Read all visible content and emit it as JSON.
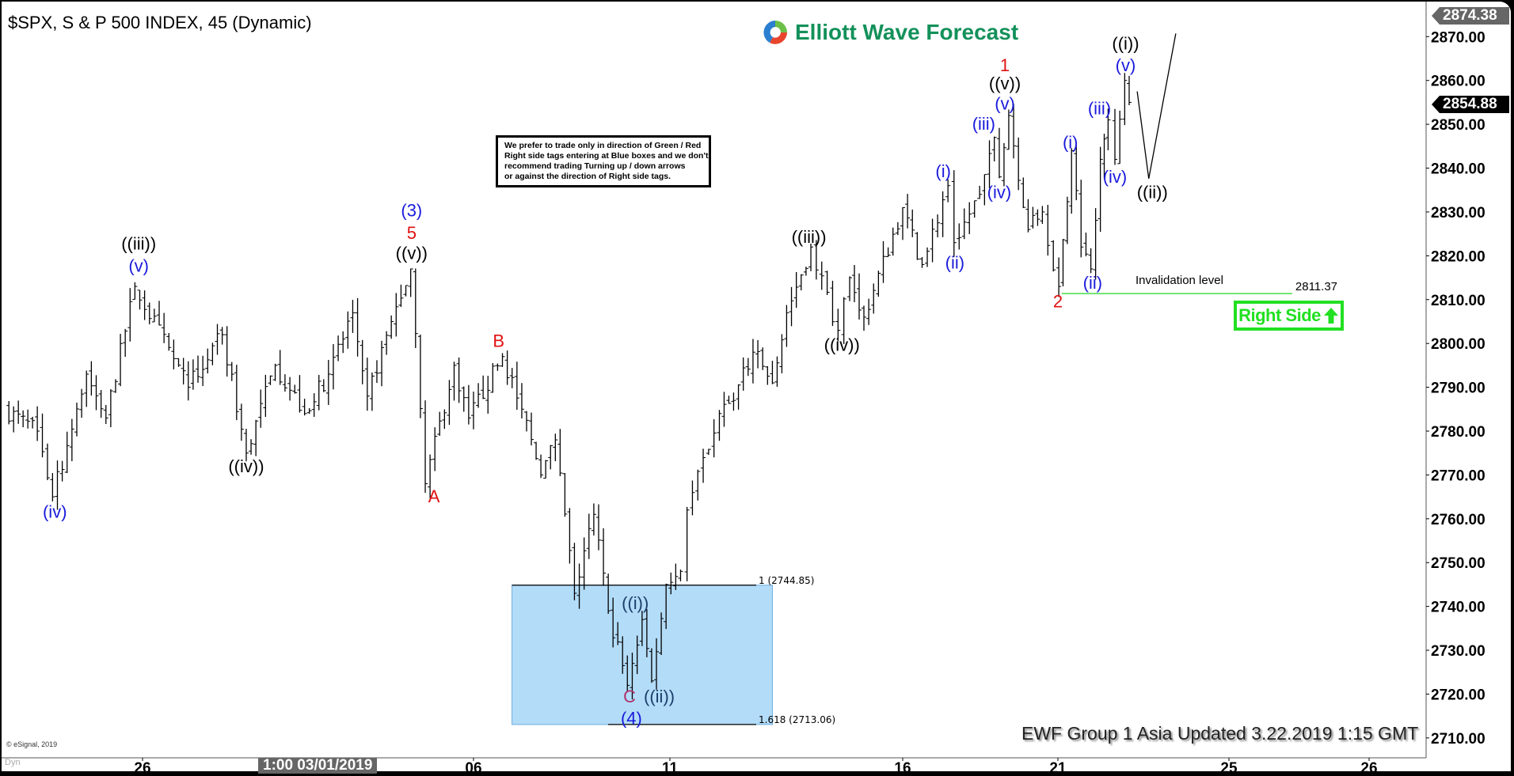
{
  "header": {
    "title": "$SPX, S & P 500 INDEX, 45 (Dynamic)",
    "logo_text": "Elliott Wave Forecast"
  },
  "note": {
    "lines": [
      "We prefer to trade only in direction of Green / Red",
      "Right side tags entering at Blue boxes and we don't",
      "recommend trading Turning up / down arrows",
      "or against the direction of Right side tags."
    ]
  },
  "right_side_tag": {
    "label": "Right Side",
    "icon": "arrow-up-icon",
    "color": "#22e022"
  },
  "update_text": "EWF Group 1 Asia Updated 3.22.2019 1:15 GMT",
  "copyright": "© eSignal, 2019",
  "dyn_label": "Dyn",
  "price_tags": {
    "high": "2874.38",
    "last": "2854.88"
  },
  "date_highlight": "1:00 03/01/2019",
  "chart_data": {
    "type": "ohlc",
    "title": "$SPX, S & P 500 INDEX, 45 (Dynamic)",
    "ylim": [
      2708,
      2876
    ],
    "y_ticks": [
      "2870.00",
      "2860.00",
      "2850.00",
      "2840.00",
      "2830.00",
      "2820.00",
      "2810.00",
      "2800.00",
      "2790.00",
      "2780.00",
      "2770.00",
      "2760.00",
      "2750.00",
      "2740.00",
      "2730.00",
      "2720.00",
      "2710.00"
    ],
    "x_ticks": [
      {
        "label": "26",
        "date": "2019-02-26T00:00"
      },
      {
        "label": "",
        "date": "2019-03-01T00:00"
      },
      {
        "label": "06",
        "date": "2019-03-06T00:00"
      },
      {
        "label": "11",
        "date": "2019-03-11T00:00"
      },
      {
        "label": "16",
        "date": "2019-03-16T00:00"
      },
      {
        "label": "21",
        "date": "2019-03-21T00:00"
      },
      {
        "label": "25",
        "date": "2019-03-25T00:00"
      },
      {
        "label": "26",
        "date": "2019-03-26T00:00"
      }
    ],
    "grid": false,
    "price_path": [
      [
        "2019-02-23T11:30",
        2785
      ],
      [
        "2019-02-24T02:00",
        2780
      ],
      [
        "2019-02-24T08:40",
        2765
      ],
      [
        "2019-02-24T23:30",
        2793
      ],
      [
        "2019-02-25T08:00",
        2783
      ],
      [
        "2019-02-25T20:40",
        2813
      ],
      [
        "2019-02-26T20:00",
        2790
      ],
      [
        "2019-02-27T10:50",
        2802
      ],
      [
        "2019-02-27T21:20",
        2775
      ],
      [
        "2019-02-28T10:00",
        2795
      ],
      [
        "2019-02-28T22:50",
        2784
      ],
      [
        "2019-03-01T15:20",
        2793
      ],
      [
        "2019-03-02T08:50",
        2807
      ],
      [
        "2019-03-02T19:20",
        2788
      ],
      [
        "2019-03-03T12:40",
        2805
      ],
      [
        "2019-03-04T02:40",
        2817
      ],
      [
        "2019-03-04T13:10",
        2768
      ],
      [
        "2019-03-05T10:00",
        2795
      ],
      [
        "2019-03-05T20:30",
        2783
      ],
      [
        "2019-03-06T17:40",
        2797
      ],
      [
        "2019-03-07T05:30",
        2785
      ],
      [
        "2019-03-07T17:10",
        2770
      ],
      [
        "2019-03-08T02:00",
        2778
      ],
      [
        "2019-03-08T13:40",
        2743
      ],
      [
        "2019-03-09T01:30",
        2761
      ],
      [
        "2019-03-09T10:20",
        2739
      ],
      [
        "2019-03-09T22:00",
        2722
      ],
      [
        "2019-03-10T07:00",
        2737
      ],
      [
        "2019-03-10T12:50",
        2723
      ],
      [
        "2019-03-10T21:40",
        2745
      ],
      [
        "2019-03-11T05:30",
        2748
      ],
      [
        "2019-03-11T08:50",
        2762
      ],
      [
        "2019-03-12T01:30",
        2784
      ],
      [
        "2019-03-12T08:50",
        2787
      ],
      [
        "2019-03-12T18:50",
        2798
      ],
      [
        "2019-03-13T04:50",
        2791
      ],
      [
        "2019-03-13T12:10",
        2807
      ],
      [
        "2019-03-14T00:40",
        2822
      ],
      [
        "2019-03-14T14:40",
        2803
      ],
      [
        "2019-03-14T20:40",
        2815
      ],
      [
        "2019-03-15T04:00",
        2806
      ],
      [
        "2019-03-16T00:00",
        2831
      ],
      [
        "2019-03-16T15:00",
        2818
      ],
      [
        "2019-03-17T11:00",
        2836
      ],
      [
        "2019-03-17T15:40",
        2823
      ],
      [
        "2019-03-18T11:30",
        2834
      ],
      [
        "2019-03-18T22:50",
        2847
      ],
      [
        "2019-03-19T02:40",
        2838
      ],
      [
        "2019-03-19T10:00",
        2852
      ],
      [
        "2019-03-20T01:00",
        2826
      ],
      [
        "2019-03-20T12:00",
        2830
      ],
      [
        "2019-03-21T00:30",
        2813
      ],
      [
        "2019-03-21T07:40",
        2844
      ],
      [
        "2019-03-21T13:00",
        2822
      ],
      [
        "2019-03-21T18:30",
        2817
      ],
      [
        "2019-03-21T23:50",
        2842
      ],
      [
        "2019-03-22T04:10",
        2851
      ],
      [
        "2019-03-22T08:00",
        2842
      ],
      [
        "2019-03-22T13:30",
        2860
      ],
      [
        "2019-03-22T16:00",
        2855
      ]
    ],
    "projection": [
      [
        "2019-03-22T20:30",
        2857.5
      ],
      [
        "2019-03-23T03:00",
        2837.6
      ],
      [
        "2019-03-23T18:10",
        2870.7
      ]
    ],
    "blue_box": {
      "from": "2019-03-06T23:30",
      "to": "2019-03-13T04:50",
      "top": 2744.85,
      "bottom": 2713.06,
      "color": "#b3dcf8"
    },
    "fib_levels": [
      {
        "label": "1 (2744.85)",
        "price": 2744.85
      },
      {
        "label": "1.618 (2713.06)",
        "price": 2713.06
      }
    ],
    "invalidation": {
      "label": "Invalidation level",
      "value_label": "2811.37",
      "price": 2811.37,
      "from": "2019-03-21T02:10",
      "to": "2019-03-25T10:50",
      "color": "#44dd44"
    },
    "annotations": [
      {
        "text": "(iv)",
        "color": "#1a1adc",
        "date": "2019-02-24T09:40",
        "price": 2761.7
      },
      {
        "text": "((iii))",
        "color": "#000000",
        "date": "2019-02-25T22:20",
        "price": 2822.9
      },
      {
        "text": "(v)",
        "color": "#1a1adc",
        "date": "2019-02-25T22:20",
        "price": 2817.8
      },
      {
        "text": "((iv))",
        "color": "#000000",
        "date": "2019-02-27T21:20",
        "price": 2772.1
      },
      {
        "text": "(3)",
        "color": "#1a1adc",
        "date": "2019-03-04T03:20",
        "price": 2830.4
      },
      {
        "text": "5",
        "color": "#e01010",
        "date": "2019-03-04T03:20",
        "price": 2825.3
      },
      {
        "text": "((v))",
        "color": "#000000",
        "date": "2019-03-04T03:20",
        "price": 2820.7
      },
      {
        "text": "A",
        "color": "#e01010",
        "date": "2019-03-04T19:30",
        "price": 2765.2
      },
      {
        "text": "B",
        "color": "#e01010",
        "date": "2019-03-06T15:20",
        "price": 2800.7
      },
      {
        "text": "((i))",
        "color": "#1b3f6a",
        "date": "2019-03-10T02:50",
        "price": 2740.8
      },
      {
        "text": "C",
        "color": "#b0306a",
        "date": "2019-03-09T23:20",
        "price": 2719.5
      },
      {
        "text": "((ii))",
        "color": "#1b3f6a",
        "date": "2019-03-10T17:30",
        "price": 2719.5
      },
      {
        "text": "(4)",
        "color": "#1a1adc",
        "date": "2019-03-10T00:30",
        "price": 2714.6
      },
      {
        "text": "((iii))",
        "color": "#000000",
        "date": "2019-03-13T23:40",
        "price": 2824.4
      },
      {
        "text": "((iv))",
        "color": "#000000",
        "date": "2019-03-14T16:40",
        "price": 2799.8
      },
      {
        "text": "(i)",
        "color": "#1a1adc",
        "date": "2019-03-17T07:20",
        "price": 2839.4
      },
      {
        "text": "(ii)",
        "color": "#1a1adc",
        "date": "2019-03-17T16:20",
        "price": 2818.5
      },
      {
        "text": "(iii)",
        "color": "#1a1adc",
        "date": "2019-03-18T14:40",
        "price": 2850.2
      },
      {
        "text": "(iv)",
        "color": "#1a1adc",
        "date": "2019-03-19T02:40",
        "price": 2834.6
      },
      {
        "text": "1",
        "color": "#e01010",
        "date": "2019-03-19T07:00",
        "price": 2863.6
      },
      {
        "text": "((v))",
        "color": "#000000",
        "date": "2019-03-19T07:00",
        "price": 2859.4
      },
      {
        "text": "(v)",
        "color": "#1a1adc",
        "date": "2019-03-19T07:00",
        "price": 2854.8
      },
      {
        "text": "2",
        "color": "#e01010",
        "date": "2019-03-21T00:00",
        "price": 2809.7
      },
      {
        "text": "(i)",
        "color": "#1a1adc",
        "date": "2019-03-21T07:00",
        "price": 2846.0
      },
      {
        "text": "(ii)",
        "color": "#1a1adc",
        "date": "2019-03-21T19:30",
        "price": 2813.9
      },
      {
        "text": "(iii)",
        "color": "#1a1adc",
        "date": "2019-03-21T23:20",
        "price": 2853.7
      },
      {
        "text": "(iv)",
        "color": "#1a1adc",
        "date": "2019-03-22T08:00",
        "price": 2838.1
      },
      {
        "text": "((i))",
        "color": "#000000",
        "date": "2019-03-22T14:00",
        "price": 2868.5
      },
      {
        "text": "(v)",
        "color": "#1a1adc",
        "date": "2019-03-22T14:00",
        "price": 2863.6
      },
      {
        "text": "((ii))",
        "color": "#000000",
        "date": "2019-03-23T05:00",
        "price": 2834.6
      }
    ]
  }
}
